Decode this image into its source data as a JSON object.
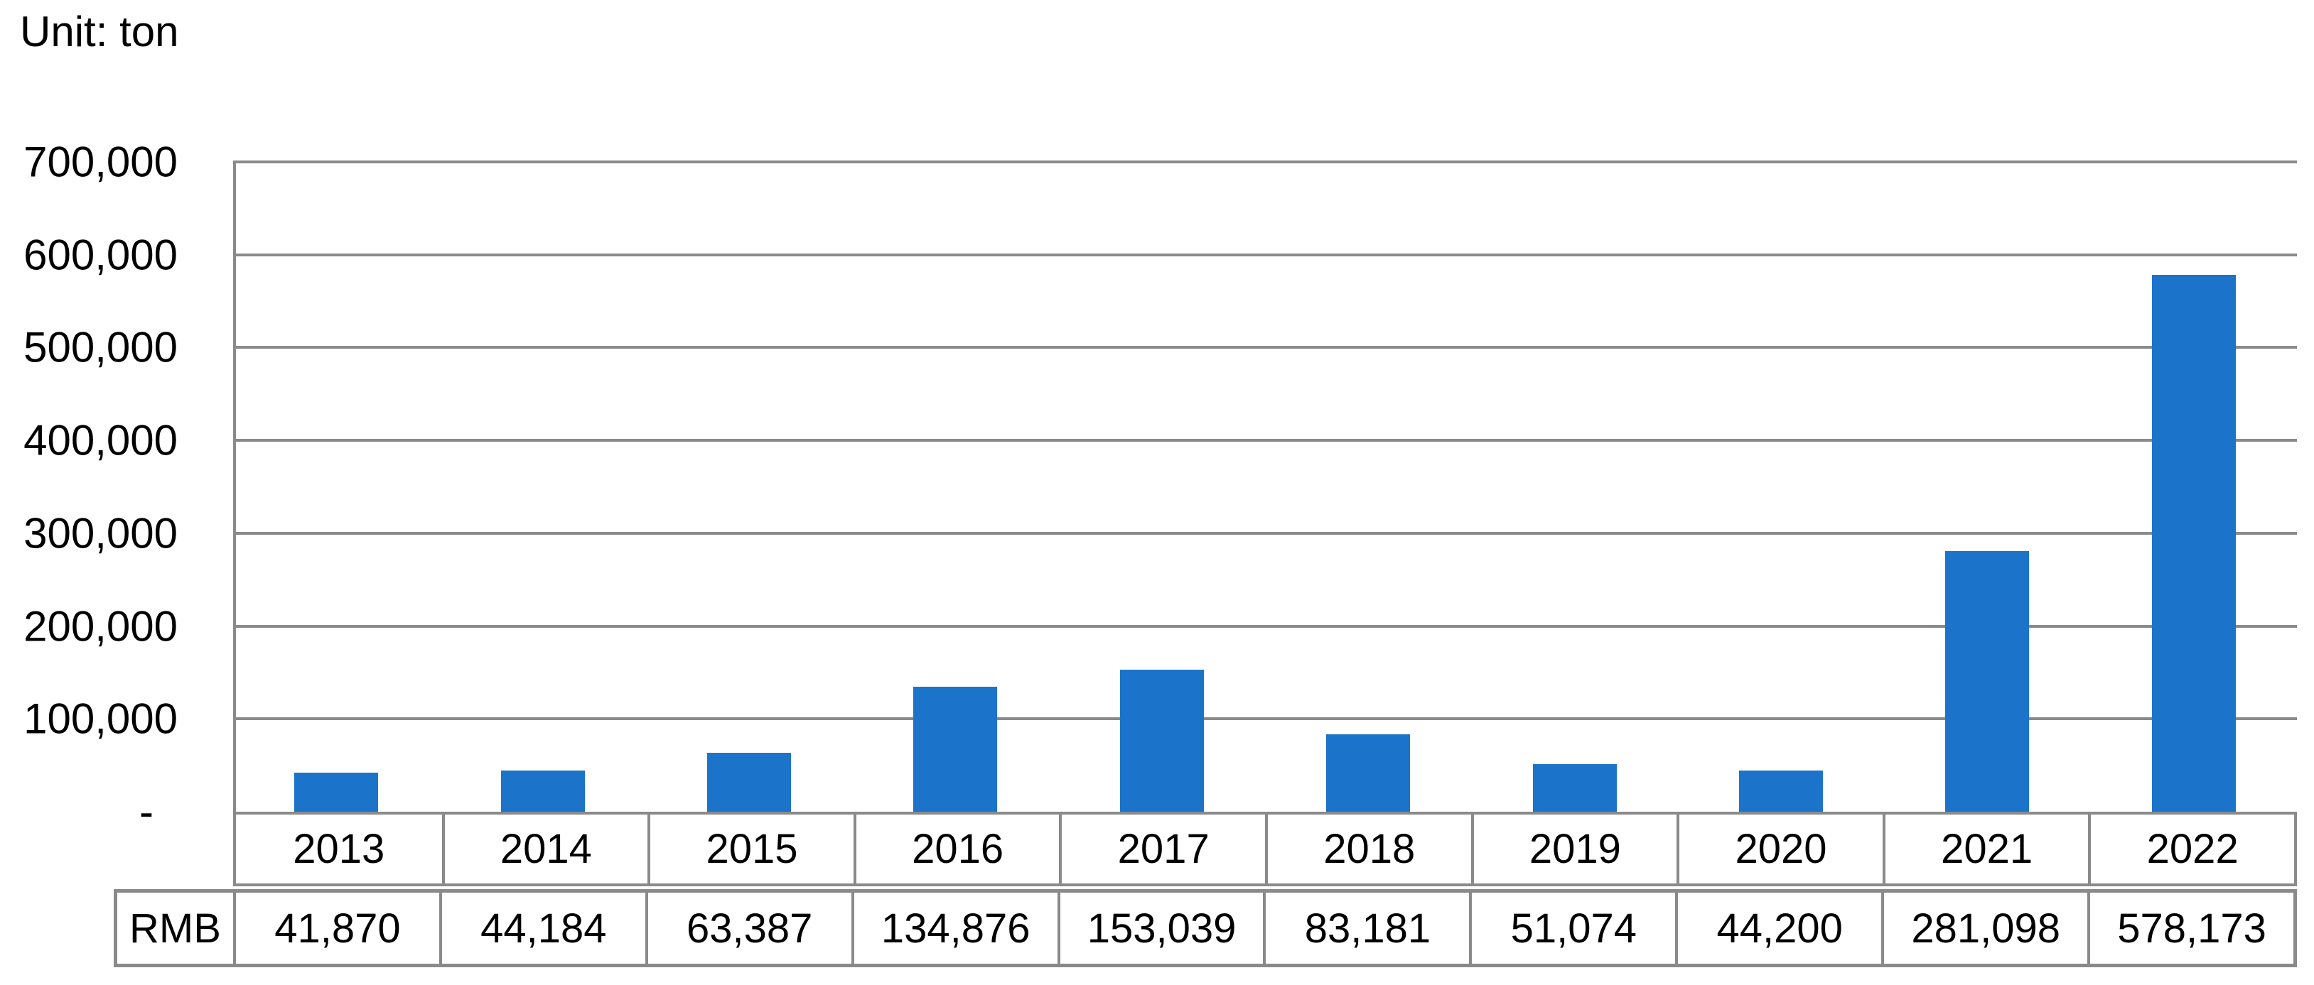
{
  "page": {
    "background": "#FFFFFF"
  },
  "chart_data": {
    "type": "bar",
    "title": "",
    "unit_label": "Unit: ton",
    "categories": [
      "2013",
      "2014",
      "2015",
      "2016",
      "2017",
      "2018",
      "2019",
      "2020",
      "2021",
      "2022"
    ],
    "series": [
      {
        "name": "RMB",
        "values": [
          41870,
          44184,
          63387,
          134876,
          153039,
          83181,
          51074,
          44200,
          281098,
          578173
        ],
        "labels": [
          "41,870",
          "44,184",
          "63,387",
          "134,876",
          "153,039",
          "83,181",
          "51,074",
          "44,200",
          "281,098",
          "578,173"
        ]
      }
    ],
    "ylim": [
      0,
      700000
    ],
    "ytick_interval": 100000,
    "y_ticks": [
      {
        "value": 700000,
        "label": "700,000"
      },
      {
        "value": 600000,
        "label": "600,000"
      },
      {
        "value": 500000,
        "label": "500,000"
      },
      {
        "value": 400000,
        "label": "400,000"
      },
      {
        "value": 300000,
        "label": "300,000"
      },
      {
        "value": 200000,
        "label": "200,000"
      },
      {
        "value": 100000,
        "label": "100,000"
      },
      {
        "value": 0,
        "label": "-"
      }
    ],
    "grid": true,
    "legend_position": "none",
    "data_table_shown": true,
    "bar_color": "#1B74C9",
    "gridline_color": "#8A8A8A",
    "table_border_color": "#8A8A8A",
    "text_color": "#000000"
  }
}
